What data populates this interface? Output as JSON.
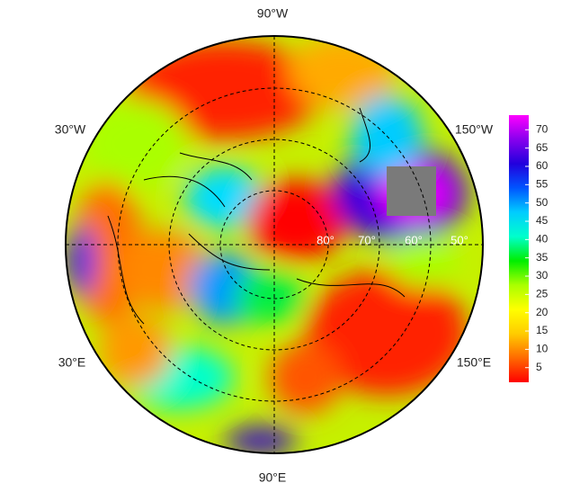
{
  "map": {
    "lon_labels": [
      "90°W",
      "30°W",
      "150°W",
      "30°E",
      "150°E",
      "90°E"
    ],
    "lat_labels": [
      "80°",
      "70°",
      "60°",
      "50°"
    ]
  },
  "colorbar": {
    "ylim": [
      1,
      74
    ],
    "ticks": [
      5,
      10,
      15,
      20,
      25,
      30,
      35,
      40,
      45,
      50,
      55,
      60,
      65,
      70
    ],
    "colors": [
      "#ff0000",
      "#ff6a00",
      "#ffcc00",
      "#ffff00",
      "#aaff00",
      "#00ee00",
      "#00ffcc",
      "#00ccff",
      "#0055ff",
      "#2200dd",
      "#8800ee",
      "#ff00ff"
    ]
  }
}
